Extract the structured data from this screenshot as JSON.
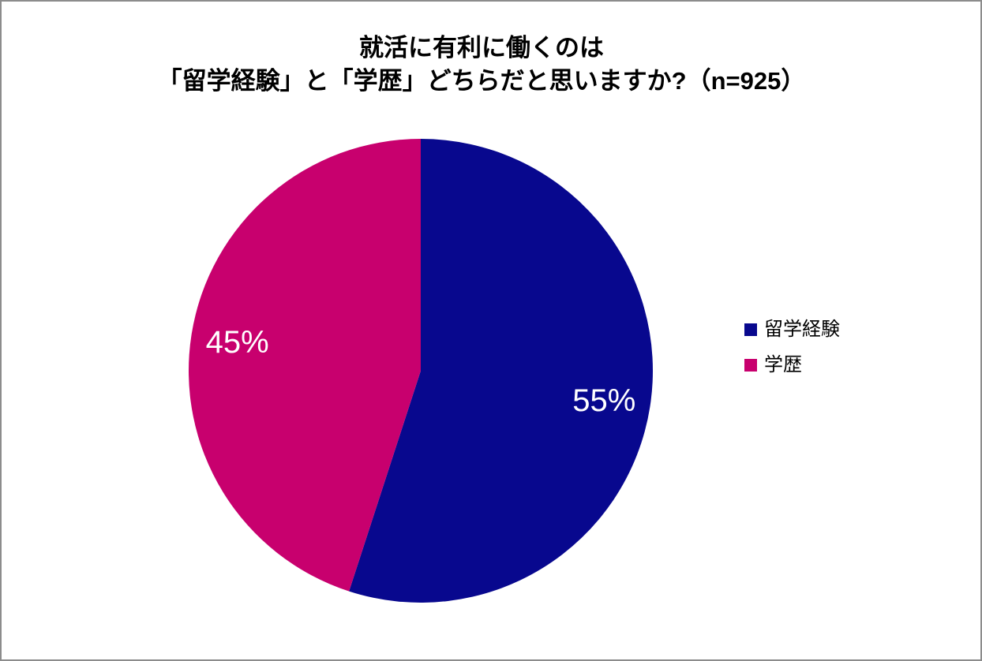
{
  "title": {
    "line1": "就活に有利に働くのは",
    "line2": "「留学経験」と「学歴」どちらだと思いますか?（n=925）"
  },
  "chart_data": {
    "type": "pie",
    "title": "就活に有利に働くのは「留学経験」と「学歴」どちらだと思いますか?（n=925）",
    "sample_size_text": "n=925",
    "start_angle_deg": 0,
    "direction": "clockwise",
    "legend_position": "right",
    "data_label_color": "#ffffff",
    "slices": [
      {
        "label": "留学経験",
        "value": 55,
        "display": "55%",
        "color": "#08088e"
      },
      {
        "label": "学歴",
        "value": 45,
        "display": "45%",
        "color": "#c8006e"
      }
    ]
  }
}
